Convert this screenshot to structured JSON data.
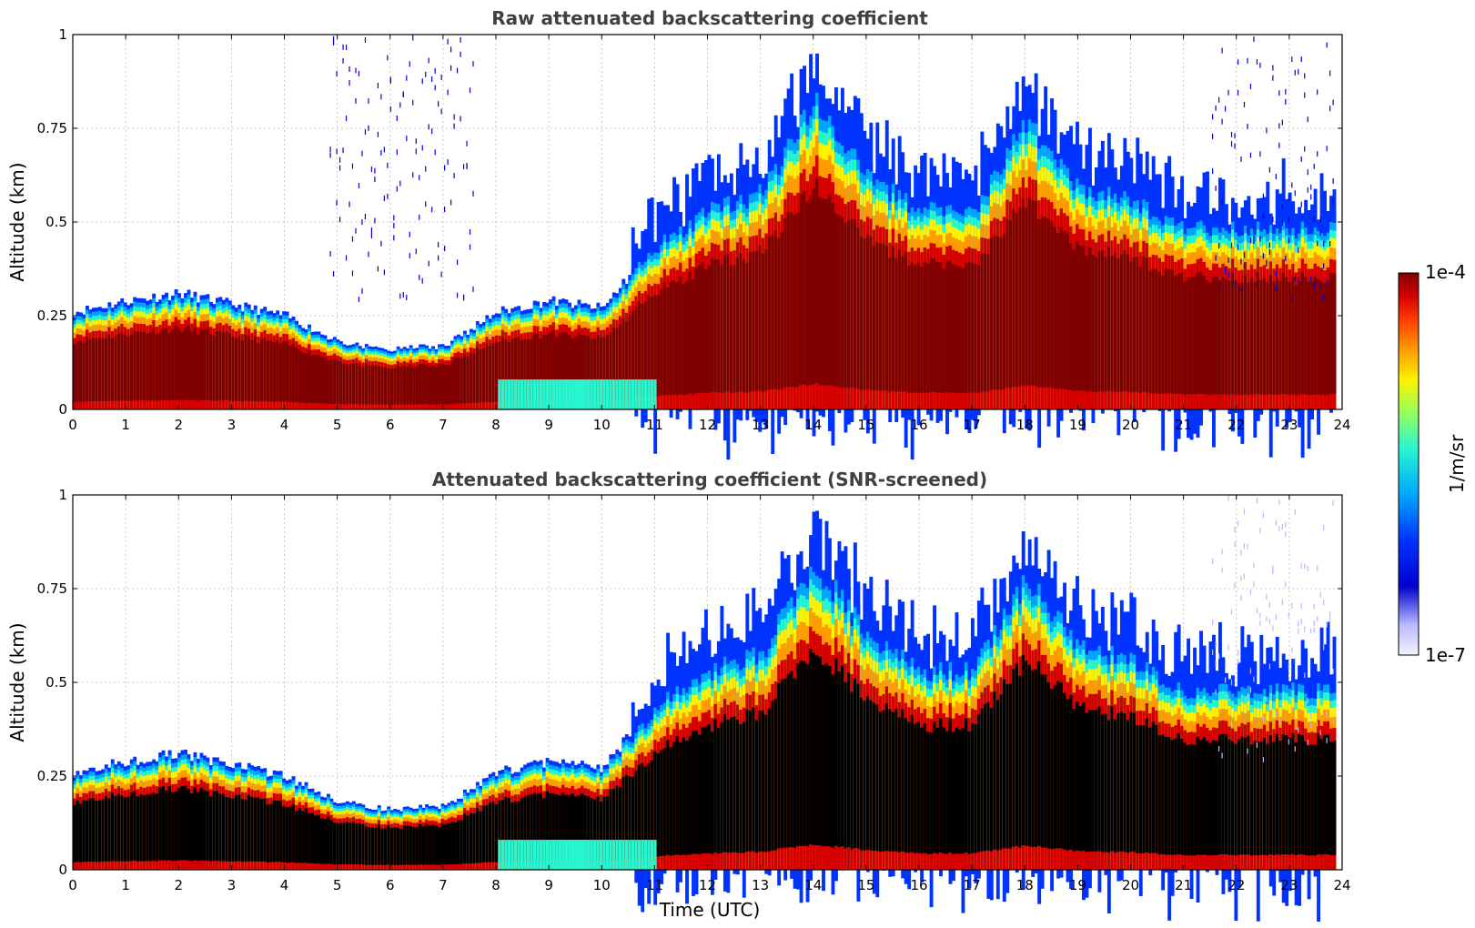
{
  "chart_data": [
    {
      "type": "heatmap",
      "title": "Raw attenuated backscattering coefficient",
      "xlabel": "",
      "ylabel": "Altitude (km)",
      "xlim": [
        0,
        24
      ],
      "ylim": [
        0,
        1
      ],
      "xticks": [
        "0",
        "1",
        "2",
        "3",
        "4",
        "5",
        "6",
        "7",
        "8",
        "9",
        "10",
        "11",
        "12",
        "13",
        "14",
        "15",
        "16",
        "17",
        "18",
        "19",
        "20",
        "21",
        "22",
        "23",
        "24"
      ],
      "yticks": [
        "0",
        "0.25",
        "0.5",
        "0.75",
        "1"
      ],
      "grid": true,
      "screened": false,
      "layer_profile": {
        "x": [
          0,
          1,
          2,
          3,
          4,
          5,
          6,
          7,
          8,
          9,
          10,
          11,
          12,
          13,
          14,
          15,
          16,
          17,
          18,
          19,
          20,
          21
        ],
        "top_km": [
          0.26,
          0.29,
          0.31,
          0.28,
          0.25,
          0.18,
          0.16,
          0.17,
          0.26,
          0.29,
          0.27,
          0.45,
          0.55,
          0.6,
          0.85,
          0.65,
          0.55,
          0.55,
          0.8,
          0.62,
          0.58,
          0.5
        ]
      }
    },
    {
      "type": "heatmap",
      "title": "Attenuated backscattering coefficient (SNR-screened)",
      "xlabel": "Time (UTC)",
      "ylabel": "Altitude (km)",
      "xlim": [
        0,
        24
      ],
      "ylim": [
        0,
        1
      ],
      "xticks": [
        "0",
        "1",
        "2",
        "3",
        "4",
        "5",
        "6",
        "7",
        "8",
        "9",
        "10",
        "11",
        "12",
        "13",
        "14",
        "15",
        "16",
        "17",
        "18",
        "19",
        "20",
        "21",
        "22",
        "23",
        "24"
      ],
      "yticks": [
        "0",
        "0.25",
        "0.5",
        "0.75",
        "1"
      ],
      "grid": true,
      "screened": true,
      "layer_profile": {
        "x": [
          0,
          1,
          2,
          3,
          4,
          5,
          6,
          7,
          8,
          9,
          10,
          11,
          12,
          13,
          14,
          15,
          16,
          17,
          18,
          19,
          20,
          21
        ],
        "top_km": [
          0.26,
          0.29,
          0.31,
          0.28,
          0.25,
          0.18,
          0.16,
          0.17,
          0.26,
          0.29,
          0.27,
          0.45,
          0.55,
          0.6,
          0.85,
          0.65,
          0.55,
          0.55,
          0.8,
          0.62,
          0.58,
          0.5
        ]
      }
    }
  ],
  "colorbar": {
    "label": "1/m/sr",
    "max_label": "1e-4",
    "min_label": "1e-7",
    "scale": "log",
    "colors": [
      "#7f0000",
      "#d40000",
      "#ff3a00",
      "#ff9a00",
      "#fff200",
      "#9dff57",
      "#27f6d0",
      "#00a7ff",
      "#0033ff",
      "#0000d0",
      "#b8b8ff",
      "#f4f4ff"
    ]
  }
}
